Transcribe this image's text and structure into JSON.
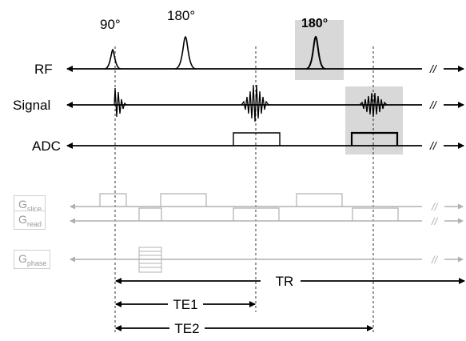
{
  "pulses": {
    "p90": "90°",
    "p180a": "180°",
    "p180b": "180°"
  },
  "rows": {
    "rf": "RF",
    "signal": "Signal",
    "adc": "ADC"
  },
  "gradients": {
    "slice": {
      "main": "G",
      "sub": "slice"
    },
    "read": {
      "main": "G",
      "sub": "read"
    },
    "phase": {
      "main": "G",
      "sub": "phase"
    }
  },
  "break_mark": "//",
  "timing": {
    "tr": "TR",
    "te1": "TE1",
    "te2": "TE2"
  },
  "colors": {
    "foreground": "#000000",
    "gray": "#b0b0b0",
    "highlight": "#d8d8d8"
  }
}
